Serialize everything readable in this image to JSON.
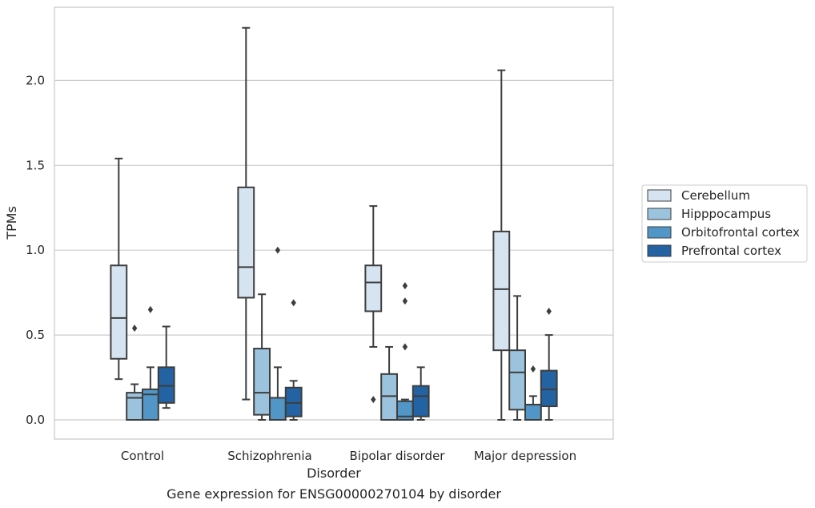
{
  "chart_data": {
    "type": "box",
    "title": "Gene expression for ENSG00000270104 by disorder",
    "xlabel": "Disorder",
    "ylabel": "TPMs",
    "ylim": [
      -0.11,
      2.44
    ],
    "yticks": [
      "0.0",
      "0.5",
      "1.0",
      "1.5",
      "2.0"
    ],
    "ytick_values": [
      0.0,
      0.5,
      1.0,
      1.5,
      2.0
    ],
    "grid": "horizontal",
    "legend_position": "right",
    "categories": [
      "Control",
      "Schizophrenia",
      "Bipolar disorder",
      "Major depression"
    ],
    "series": [
      {
        "name": "Cerebellum",
        "color": "#d6e4f2",
        "boxes": [
          {
            "whislo": 0.24,
            "q1": 0.36,
            "med": 0.6,
            "q3": 0.91,
            "whishi": 1.54,
            "fliers": []
          },
          {
            "whislo": 0.12,
            "q1": 0.72,
            "med": 0.9,
            "q3": 1.37,
            "whishi": 2.31,
            "fliers": []
          },
          {
            "whislo": 0.43,
            "q1": 0.64,
            "med": 0.81,
            "q3": 0.91,
            "whishi": 1.26,
            "fliers": [
              0.12
            ]
          },
          {
            "whislo": 0.0,
            "q1": 0.41,
            "med": 0.77,
            "q3": 1.11,
            "whishi": 2.06,
            "fliers": []
          }
        ]
      },
      {
        "name": "Hipppocampus",
        "color": "#9cc3dd",
        "boxes": [
          {
            "whislo": 0.0,
            "q1": 0.0,
            "med": 0.13,
            "q3": 0.16,
            "whishi": 0.21,
            "fliers": [
              0.54
            ]
          },
          {
            "whislo": 0.0,
            "q1": 0.03,
            "med": 0.16,
            "q3": 0.42,
            "whishi": 0.74,
            "fliers": []
          },
          {
            "whislo": 0.0,
            "q1": 0.0,
            "med": 0.14,
            "q3": 0.27,
            "whishi": 0.43,
            "fliers": []
          },
          {
            "whislo": 0.0,
            "q1": 0.06,
            "med": 0.28,
            "q3": 0.41,
            "whishi": 0.73,
            "fliers": []
          }
        ]
      },
      {
        "name": "Orbitofrontal cortex",
        "color": "#5196c6",
        "boxes": [
          {
            "whislo": 0.0,
            "q1": 0.0,
            "med": 0.15,
            "q3": 0.18,
            "whishi": 0.31,
            "fliers": [
              0.65
            ]
          },
          {
            "whislo": 0.0,
            "q1": 0.0,
            "med": 0.0,
            "q3": 0.13,
            "whishi": 0.31,
            "fliers": [
              1.0
            ]
          },
          {
            "whislo": 0.0,
            "q1": 0.0,
            "med": 0.02,
            "q3": 0.11,
            "whishi": 0.12,
            "fliers": [
              0.43,
              0.7,
              0.79
            ]
          },
          {
            "whislo": 0.0,
            "q1": 0.0,
            "med": 0.0,
            "q3": 0.09,
            "whishi": 0.14,
            "fliers": [
              0.3
            ]
          }
        ]
      },
      {
        "name": "Prefrontal cortex",
        "color": "#2463a3",
        "boxes": [
          {
            "whislo": 0.07,
            "q1": 0.1,
            "med": 0.2,
            "q3": 0.31,
            "whishi": 0.55,
            "fliers": []
          },
          {
            "whislo": 0.0,
            "q1": 0.02,
            "med": 0.1,
            "q3": 0.19,
            "whishi": 0.23,
            "fliers": [
              0.69
            ]
          },
          {
            "whislo": 0.0,
            "q1": 0.02,
            "med": 0.14,
            "q3": 0.2,
            "whishi": 0.31,
            "fliers": []
          },
          {
            "whislo": 0.0,
            "q1": 0.08,
            "med": 0.18,
            "q3": 0.29,
            "whishi": 0.5,
            "fliers": [
              0.64
            ]
          }
        ]
      }
    ]
  }
}
